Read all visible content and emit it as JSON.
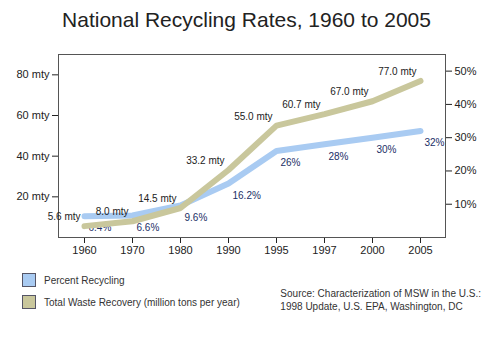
{
  "chart_data": {
    "type": "line",
    "title": "National Recycling Rates, 1960 to 2005",
    "categories": [
      "1960",
      "1970",
      "1980",
      "1990",
      "1995",
      "1997",
      "2000",
      "2005"
    ],
    "series": [
      {
        "name": "Percent Recycling",
        "color": "#a9cbf2",
        "axis": "y2",
        "values": [
          6.4,
          6.6,
          9.6,
          16.2,
          26,
          28,
          30,
          32
        ],
        "value_labels": [
          "6.4%",
          "6.6%",
          "9.6%",
          "16.2%",
          "26%",
          "28%",
          "30%",
          "32%"
        ]
      },
      {
        "name": "Total Waste Recovery (million tons per year)",
        "color": "#c9c79c",
        "values": [
          5.6,
          8.0,
          14.5,
          33.2,
          55.0,
          60.7,
          67.0,
          77.0
        ],
        "value_labels": [
          "5.6 mty",
          "8.0 mty",
          "14.5 mty",
          "33.2 mty",
          "55.0 mty",
          "60.7 mty",
          "67.0 mty",
          "77.0 mty"
        ]
      }
    ],
    "ylim": [
      0,
      90
    ],
    "yticks": [
      {
        "value": 20,
        "label": "20 mty"
      },
      {
        "value": 40,
        "label": "40 mty"
      },
      {
        "value": 60,
        "label": "60 mty"
      },
      {
        "value": 80,
        "label": "80 mty"
      }
    ],
    "y2lim": [
      0,
      55
    ],
    "y2ticks": [
      {
        "value": 10,
        "label": "10%"
      },
      {
        "value": 20,
        "label": "20%"
      },
      {
        "value": 30,
        "label": "30%"
      },
      {
        "value": 40,
        "label": "40%"
      },
      {
        "value": 50,
        "label": "50%"
      }
    ],
    "data_labels": true,
    "grid": false,
    "legend": "bottom",
    "annotations": [
      "Source: Characterization of MSW in the U.S.:",
      "1998 Update, U.S. EPA, Washington, DC"
    ]
  }
}
